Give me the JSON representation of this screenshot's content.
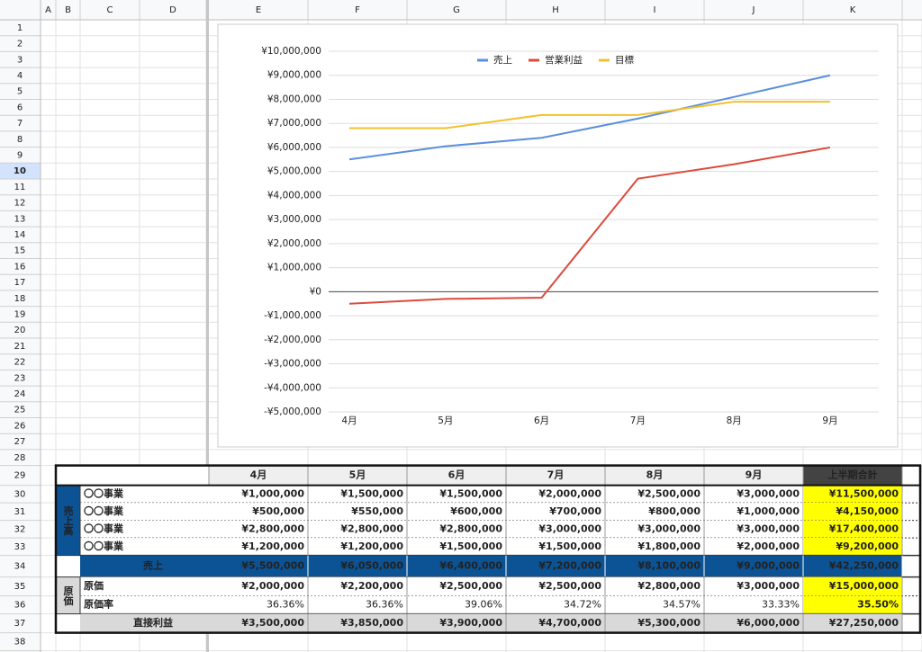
{
  "sheet": {
    "columns": [
      "A",
      "B",
      "C",
      "D",
      "E",
      "F",
      "G",
      "H",
      "I",
      "J",
      "K"
    ],
    "rows": [
      1,
      2,
      3,
      4,
      5,
      6,
      7,
      8,
      9,
      10,
      11,
      12,
      13,
      14,
      15,
      16,
      17,
      18,
      19,
      20,
      21,
      22,
      23,
      24,
      25,
      26,
      27,
      28,
      29,
      30,
      31,
      32,
      33,
      34,
      35,
      36,
      37,
      38
    ]
  },
  "chart_data": {
    "type": "line",
    "categories": [
      "4月",
      "5月",
      "6月",
      "7月",
      "8月",
      "9月"
    ],
    "series": [
      {
        "name": "売上",
        "color": "#5b8fdc",
        "values": [
          5500000,
          6050000,
          6400000,
          7200000,
          8100000,
          9000000
        ]
      },
      {
        "name": "営業利益",
        "color": "#dc4b3e",
        "values": [
          -500000,
          -300000,
          -250000,
          4700000,
          5300000,
          6000000
        ]
      },
      {
        "name": "目標",
        "color": "#f2c12e",
        "values": [
          6800000,
          6800000,
          7350000,
          7350000,
          7900000,
          7900000
        ]
      }
    ],
    "ylim": [
      -5000000,
      10000000
    ],
    "yticks": [
      {
        "value": -5000000,
        "label": "-¥5,000,000"
      },
      {
        "value": -4000000,
        "label": "-¥4,000,000"
      },
      {
        "value": -3000000,
        "label": "-¥3,000,000"
      },
      {
        "value": -2000000,
        "label": "-¥2,000,000"
      },
      {
        "value": -1000000,
        "label": "-¥1,000,000"
      },
      {
        "value": 0,
        "label": "¥0"
      },
      {
        "value": 1000000,
        "label": "¥1,000,000"
      },
      {
        "value": 2000000,
        "label": "¥2,000,000"
      },
      {
        "value": 3000000,
        "label": "¥3,000,000"
      },
      {
        "value": 4000000,
        "label": "¥4,000,000"
      },
      {
        "value": 5000000,
        "label": "¥5,000,000"
      },
      {
        "value": 6000000,
        "label": "¥6,000,000"
      },
      {
        "value": 7000000,
        "label": "¥7,000,000"
      },
      {
        "value": 8000000,
        "label": "¥8,000,000"
      },
      {
        "value": 9000000,
        "label": "¥9,000,000"
      },
      {
        "value": 10000000,
        "label": "¥10,000,000"
      }
    ],
    "grid": true,
    "legend": "top"
  },
  "table": {
    "header": [
      "4月",
      "5月",
      "6月",
      "7月",
      "8月",
      "9月",
      "上半期合計"
    ],
    "groups": [
      "売上高",
      "原価"
    ],
    "rows": [
      {
        "label": "〇〇事業",
        "cells": [
          "¥1,000,000",
          "¥1,500,000",
          "¥1,500,000",
          "¥2,000,000",
          "¥2,500,000",
          "¥3,000,000",
          "¥11,500,000"
        ]
      },
      {
        "label": "〇〇事業",
        "cells": [
          "¥500,000",
          "¥550,000",
          "¥600,000",
          "¥700,000",
          "¥800,000",
          "¥1,000,000",
          "¥4,150,000"
        ]
      },
      {
        "label": "〇〇事業",
        "cells": [
          "¥2,800,000",
          "¥2,800,000",
          "¥2,800,000",
          "¥3,000,000",
          "¥3,000,000",
          "¥3,000,000",
          "¥17,400,000"
        ]
      },
      {
        "label": "〇〇事業",
        "cells": [
          "¥1,200,000",
          "¥1,200,000",
          "¥1,500,000",
          "¥1,500,000",
          "¥1,800,000",
          "¥2,000,000",
          "¥9,200,000"
        ]
      },
      {
        "label": "売上",
        "cells": [
          "¥5,500,000",
          "¥6,050,000",
          "¥6,400,000",
          "¥7,200,000",
          "¥8,100,000",
          "¥9,000,000",
          "¥42,250,000"
        ]
      },
      {
        "label": "原価",
        "cells": [
          "¥2,000,000",
          "¥2,200,000",
          "¥2,500,000",
          "¥2,500,000",
          "¥2,800,000",
          "¥3,000,000",
          "¥15,000,000"
        ]
      },
      {
        "label": "原価率",
        "cells": [
          "36.36%",
          "36.36%",
          "39.06%",
          "34.72%",
          "34.57%",
          "33.33%",
          "35.50%"
        ]
      },
      {
        "label": "直接利益",
        "cells": [
          "¥3,500,000",
          "¥3,850,000",
          "¥3,900,000",
          "¥4,700,000",
          "¥5,300,000",
          "¥6,000,000",
          "¥27,250,000"
        ]
      }
    ]
  }
}
